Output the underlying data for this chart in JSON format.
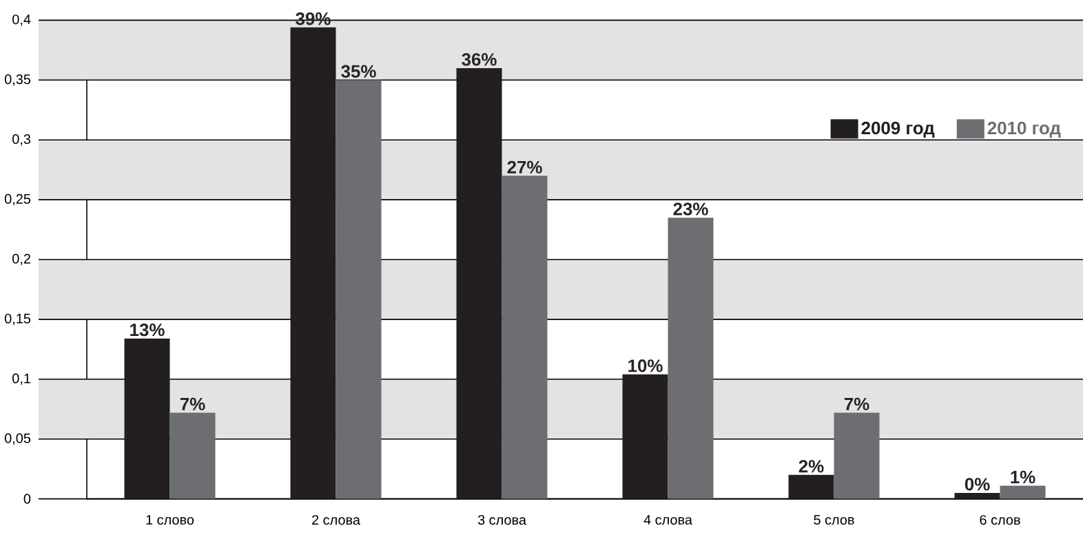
{
  "chart_data": {
    "type": "bar",
    "categories": [
      "1 слово",
      "2 слова",
      "3 слова",
      "4 слова",
      "5 слов",
      "6 слов"
    ],
    "series": [
      {
        "name": "2009 год",
        "color": "#231f20",
        "values": [
          0.134,
          0.394,
          0.36,
          0.104,
          0.02,
          0.005
        ],
        "value_labels": [
          "13%",
          "39%",
          "36%",
          "10%",
          "2%",
          "0%"
        ]
      },
      {
        "name": "2010 год",
        "color": "#6d6e71",
        "values": [
          0.072,
          0.35,
          0.27,
          0.235,
          0.072,
          0.011
        ],
        "value_labels": [
          "7%",
          "35%",
          "27%",
          "23%",
          "7%",
          "1%"
        ]
      }
    ],
    "ylim": [
      0,
      0.4
    ],
    "yticks": [
      0,
      {
        "value": 0.05,
        "label": "0,05"
      },
      {
        "value": 0.1,
        "label": "0,1"
      },
      {
        "value": 0.15,
        "label": "0,15"
      },
      {
        "value": 0.2,
        "label": "0,2"
      },
      {
        "value": 0.25,
        "label": "0,25"
      },
      {
        "value": 0.3,
        "label": "0,3"
      },
      {
        "value": 0.35,
        "label": "0,35"
      },
      {
        "value": 0.4,
        "label": "0,4"
      }
    ],
    "bands": [
      {
        "axis": "y",
        "from": 0.05,
        "to": 0.1,
        "color": "#e3e3e3"
      },
      {
        "axis": "y",
        "from": 0.15,
        "to": 0.2,
        "color": "#e3e3e3"
      },
      {
        "axis": "y",
        "from": 0.25,
        "to": 0.3,
        "color": "#e3e3e3"
      },
      {
        "axis": "y",
        "from": 0.35,
        "to": 0.4,
        "color": "#e3e3e3"
      }
    ],
    "grid": "y",
    "legend": "top right"
  }
}
